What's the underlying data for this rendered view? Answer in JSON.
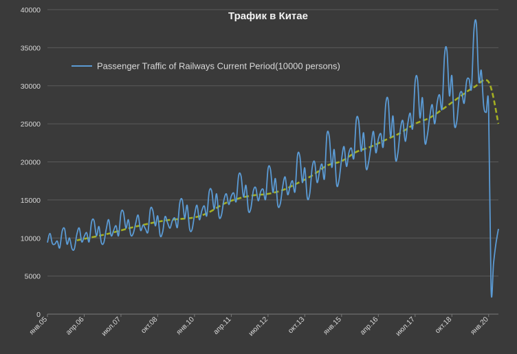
{
  "chart_data": {
    "type": "line",
    "title": "Трафик в Китае",
    "xlabel": "",
    "ylabel": "",
    "ylim": [
      0,
      40000
    ],
    "yticks": [
      0,
      5000,
      10000,
      15000,
      20000,
      25000,
      30000,
      35000,
      40000
    ],
    "x_tick_labels": [
      "янв.05",
      "апр.06",
      "июл.07",
      "окт.08",
      "янв.10",
      "апр.11",
      "июл.12",
      "окт.13",
      "янв.15",
      "апр.16",
      "июл.17",
      "окт.18",
      "янв.20"
    ],
    "x_tick_dates": [
      "2005-01",
      "2006-04",
      "2007-07",
      "2008-10",
      "2010-01",
      "2011-04",
      "2012-07",
      "2013-10",
      "2015-01",
      "2016-04",
      "2017-07",
      "2018-10",
      "2020-01"
    ],
    "x_range": [
      "2005-01",
      "2020-05"
    ],
    "grid": true,
    "legend_position": "top-left",
    "colors": {
      "background": "#3a3a3a",
      "grid": "#5a5a5a",
      "series": "#5b9bd5",
      "trend": "#a5b022"
    },
    "series": [
      {
        "name": "Passenger Traffic of Railways Current Period(10000 persons)",
        "data": [
          [
            "2005-01",
            9400
          ],
          [
            "2005-02",
            10600
          ],
          [
            "2005-03",
            9300
          ],
          [
            "2005-04",
            9200
          ],
          [
            "2005-05",
            9600
          ],
          [
            "2005-06",
            8700
          ],
          [
            "2005-07",
            10900
          ],
          [
            "2005-08",
            11200
          ],
          [
            "2005-09",
            9200
          ],
          [
            "2005-10",
            10000
          ],
          [
            "2005-11",
            8600
          ],
          [
            "2005-12",
            8600
          ],
          [
            "2006-01",
            10500
          ],
          [
            "2006-02",
            11300
          ],
          [
            "2006-03",
            9500
          ],
          [
            "2006-04",
            10200
          ],
          [
            "2006-05",
            10700
          ],
          [
            "2006-06",
            9500
          ],
          [
            "2006-07",
            12100
          ],
          [
            "2006-08",
            12300
          ],
          [
            "2006-09",
            10300
          ],
          [
            "2006-10",
            11500
          ],
          [
            "2006-11",
            9400
          ],
          [
            "2006-12",
            9400
          ],
          [
            "2007-01",
            11200
          ],
          [
            "2007-02",
            12400
          ],
          [
            "2007-03",
            10300
          ],
          [
            "2007-04",
            11000
          ],
          [
            "2007-05",
            11600
          ],
          [
            "2007-06",
            10300
          ],
          [
            "2007-07",
            13300
          ],
          [
            "2007-08",
            13400
          ],
          [
            "2007-09",
            11300
          ],
          [
            "2007-10",
            12400
          ],
          [
            "2007-11",
            10400
          ],
          [
            "2007-12",
            10600
          ],
          [
            "2008-01",
            11900
          ],
          [
            "2008-02",
            13000
          ],
          [
            "2008-03",
            11000
          ],
          [
            "2008-04",
            11700
          ],
          [
            "2008-05",
            11200
          ],
          [
            "2008-06",
            10800
          ],
          [
            "2008-07",
            13800
          ],
          [
            "2008-08",
            13600
          ],
          [
            "2008-09",
            11600
          ],
          [
            "2008-10",
            12900
          ],
          [
            "2008-11",
            10300
          ],
          [
            "2008-12",
            10800
          ],
          [
            "2009-01",
            12800
          ],
          [
            "2009-02",
            12000
          ],
          [
            "2009-03",
            11300
          ],
          [
            "2009-04",
            12300
          ],
          [
            "2009-05",
            12600
          ],
          [
            "2009-06",
            11400
          ],
          [
            "2009-07",
            14600
          ],
          [
            "2009-08",
            15000
          ],
          [
            "2009-09",
            12600
          ],
          [
            "2009-10",
            14300
          ],
          [
            "2009-11",
            11200
          ],
          [
            "2009-12",
            11100
          ],
          [
            "2010-01",
            13000
          ],
          [
            "2010-02",
            14300
          ],
          [
            "2010-03",
            12400
          ],
          [
            "2010-04",
            13600
          ],
          [
            "2010-05",
            14200
          ],
          [
            "2010-06",
            12900
          ],
          [
            "2010-07",
            16100
          ],
          [
            "2010-08",
            16200
          ],
          [
            "2010-09",
            13800
          ],
          [
            "2010-10",
            15800
          ],
          [
            "2010-11",
            12800
          ],
          [
            "2010-12",
            13000
          ],
          [
            "2011-01",
            15000
          ],
          [
            "2011-02",
            15800
          ],
          [
            "2011-03",
            14400
          ],
          [
            "2011-04",
            15500
          ],
          [
            "2011-05",
            15900
          ],
          [
            "2011-06",
            14800
          ],
          [
            "2011-07",
            18200
          ],
          [
            "2011-08",
            18100
          ],
          [
            "2011-09",
            15400
          ],
          [
            "2011-10",
            16900
          ],
          [
            "2011-11",
            13600
          ],
          [
            "2011-12",
            13900
          ],
          [
            "2012-01",
            16200
          ],
          [
            "2012-02",
            16600
          ],
          [
            "2012-03",
            14900
          ],
          [
            "2012-04",
            16100
          ],
          [
            "2012-05",
            16400
          ],
          [
            "2012-06",
            15100
          ],
          [
            "2012-07",
            19100
          ],
          [
            "2012-08",
            19000
          ],
          [
            "2012-09",
            16000
          ],
          [
            "2012-10",
            17800
          ],
          [
            "2012-11",
            14300
          ],
          [
            "2012-12",
            14500
          ],
          [
            "2013-01",
            16800
          ],
          [
            "2013-02",
            18000
          ],
          [
            "2013-03",
            15700
          ],
          [
            "2013-04",
            16800
          ],
          [
            "2013-05",
            17500
          ],
          [
            "2013-06",
            16100
          ],
          [
            "2013-07",
            20800
          ],
          [
            "2013-08",
            20700
          ],
          [
            "2013-09",
            17300
          ],
          [
            "2013-10",
            19200
          ],
          [
            "2013-11",
            15300
          ],
          [
            "2013-12",
            15800
          ],
          [
            "2014-01",
            19200
          ],
          [
            "2014-02",
            20000
          ],
          [
            "2014-03",
            17300
          ],
          [
            "2014-04",
            18700
          ],
          [
            "2014-05",
            19700
          ],
          [
            "2014-06",
            17800
          ],
          [
            "2014-07",
            23500
          ],
          [
            "2014-08",
            23300
          ],
          [
            "2014-09",
            19300
          ],
          [
            "2014-10",
            21600
          ],
          [
            "2014-11",
            17000
          ],
          [
            "2014-12",
            17700
          ],
          [
            "2015-01",
            20300
          ],
          [
            "2015-02",
            22000
          ],
          [
            "2015-03",
            19400
          ],
          [
            "2015-04",
            21200
          ],
          [
            "2015-05",
            21800
          ],
          [
            "2015-06",
            20500
          ],
          [
            "2015-07",
            25500
          ],
          [
            "2015-08",
            25300
          ],
          [
            "2015-09",
            21400
          ],
          [
            "2015-10",
            23800
          ],
          [
            "2015-11",
            19200
          ],
          [
            "2015-12",
            19900
          ],
          [
            "2016-01",
            22000
          ],
          [
            "2016-02",
            24000
          ],
          [
            "2016-03",
            21200
          ],
          [
            "2016-04",
            23000
          ],
          [
            "2016-05",
            23700
          ],
          [
            "2016-06",
            22000
          ],
          [
            "2016-07",
            27500
          ],
          [
            "2016-08",
            28100
          ],
          [
            "2016-09",
            23300
          ],
          [
            "2016-10",
            26000
          ],
          [
            "2016-11",
            20400
          ],
          [
            "2016-12",
            21200
          ],
          [
            "2017-01",
            24300
          ],
          [
            "2017-02",
            25400
          ],
          [
            "2017-03",
            22700
          ],
          [
            "2017-04",
            25000
          ],
          [
            "2017-05",
            26400
          ],
          [
            "2017-06",
            24400
          ],
          [
            "2017-07",
            30500
          ],
          [
            "2017-08",
            30800
          ],
          [
            "2017-09",
            25800
          ],
          [
            "2017-10",
            28400
          ],
          [
            "2017-11",
            22600
          ],
          [
            "2017-12",
            23500
          ],
          [
            "2018-01",
            26000
          ],
          [
            "2018-02",
            27500
          ],
          [
            "2018-03",
            25000
          ],
          [
            "2018-04",
            27800
          ],
          [
            "2018-05",
            28800
          ],
          [
            "2018-06",
            27000
          ],
          [
            "2018-07",
            34000
          ],
          [
            "2018-08",
            34600
          ],
          [
            "2018-09",
            28700
          ],
          [
            "2018-10",
            31300
          ],
          [
            "2018-11",
            25000
          ],
          [
            "2018-12",
            25300
          ],
          [
            "2019-01",
            28500
          ],
          [
            "2019-02",
            29200
          ],
          [
            "2019-03",
            27700
          ],
          [
            "2019-04",
            30600
          ],
          [
            "2019-05",
            30900
          ],
          [
            "2019-06",
            29700
          ],
          [
            "2019-07",
            37200
          ],
          [
            "2019-08",
            38100
          ],
          [
            "2019-09",
            30600
          ],
          [
            "2019-10",
            32000
          ],
          [
            "2019-11",
            27300
          ],
          [
            "2019-12",
            26500
          ],
          [
            "2020-01",
            27100
          ],
          [
            "2020-02",
            3300
          ],
          [
            "2020-03",
            6700
          ],
          [
            "2020-04",
            9300
          ],
          [
            "2020-05",
            11200
          ]
        ]
      },
      {
        "name": "",
        "style": "dashed",
        "data": [
          [
            "2006-01",
            9700
          ],
          [
            "2007-01",
            10500
          ],
          [
            "2008-01",
            11500
          ],
          [
            "2009-01",
            12300
          ],
          [
            "2010-01",
            12700
          ],
          [
            "2010-07",
            13400
          ],
          [
            "2011-01",
            14500
          ],
          [
            "2011-07",
            15200
          ],
          [
            "2012-01",
            15600
          ],
          [
            "2012-07",
            15800
          ],
          [
            "2013-01",
            16300
          ],
          [
            "2013-07",
            17200
          ],
          [
            "2014-01",
            18200
          ],
          [
            "2014-07",
            19500
          ],
          [
            "2015-01",
            20100
          ],
          [
            "2015-07",
            21300
          ],
          [
            "2016-01",
            22000
          ],
          [
            "2016-07",
            22900
          ],
          [
            "2017-01",
            23800
          ],
          [
            "2017-07",
            25000
          ],
          [
            "2018-01",
            25800
          ],
          [
            "2018-07",
            27100
          ],
          [
            "2019-01",
            28500
          ],
          [
            "2019-07",
            29800
          ],
          [
            "2020-01",
            30500
          ],
          [
            "2020-05",
            25000
          ]
        ]
      }
    ]
  }
}
